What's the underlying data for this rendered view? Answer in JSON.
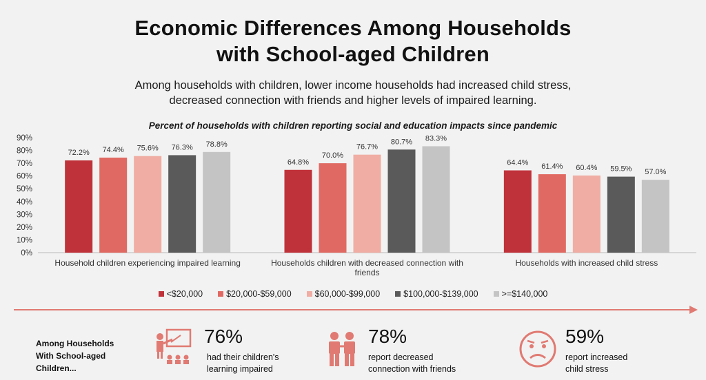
{
  "title_line1": "Economic Differences Among Households",
  "title_line2": "with School-aged Children",
  "subtitle_line1": "Among households with children, lower income households had increased child stress,",
  "subtitle_line2": "decreased connection with friends and higher levels of impaired learning.",
  "colors": {
    "series": [
      "#c0323a",
      "#e06a63",
      "#f0ada3",
      "#5a5a5a",
      "#c4c4c4"
    ],
    "accent": "#e07a72"
  },
  "chart_data": {
    "type": "bar",
    "title": "Percent of households with children reporting social and education impacts since pandemic",
    "categories": [
      "Household children experiencing impaired learning",
      "Households children with decreased connection with friends",
      "Households with increased child stress"
    ],
    "series": [
      {
        "name": "<$20,000",
        "values": [
          72.2,
          64.8,
          64.4
        ]
      },
      {
        "name": "$20,000-$59,000",
        "values": [
          74.4,
          70.0,
          61.4
        ]
      },
      {
        "name": "$60,000-$99,000",
        "values": [
          75.6,
          76.7,
          60.4
        ]
      },
      {
        "name": "$100,000-$139,000",
        "values": [
          76.3,
          80.7,
          59.5
        ]
      },
      {
        "name": ">=$140,000",
        "values": [
          78.8,
          83.3,
          57.0
        ]
      }
    ],
    "yticks": [
      "0%",
      "10%",
      "20%",
      "30%",
      "40%",
      "50%",
      "60%",
      "70%",
      "80%",
      "90%"
    ],
    "ylim": [
      0,
      90
    ],
    "grid": false,
    "legend": "bottom"
  },
  "footer": {
    "label_lines": [
      "Among Households",
      "With School-aged",
      "Children..."
    ],
    "stats": [
      {
        "icon": "teacher-icon",
        "pct": "76%",
        "lines": [
          "had their children's",
          "learning impaired"
        ]
      },
      {
        "icon": "friends-icon",
        "pct": "78%",
        "lines": [
          "report decreased",
          "connection with friends"
        ]
      },
      {
        "icon": "stressed-face-icon",
        "pct": "59%",
        "lines": [
          "report increased",
          "child stress"
        ]
      }
    ]
  }
}
